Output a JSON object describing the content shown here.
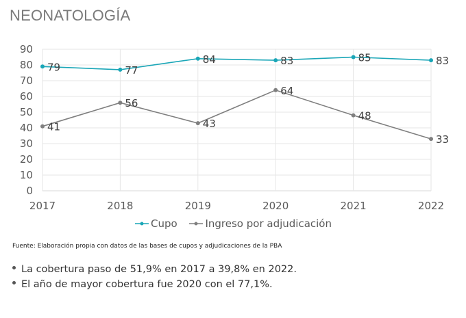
{
  "page": {
    "title": "NEONATOLOGÍA",
    "source": "Fuente: Elaboración propia con datos de las bases de cupos y adjudicaciones de la PBA",
    "bullets": [
      "La cobertura paso de 51,9% en 2017 a 39,8% en 2022.",
      "El año de mayor cobertura fue 2020 con el 77,1%."
    ]
  },
  "chart_data": {
    "type": "line",
    "title": "NEONATOLOGÍA",
    "xlabel": "",
    "ylabel": "",
    "categories": [
      "2017",
      "2018",
      "2019",
      "2020",
      "2021",
      "2022"
    ],
    "ylim": [
      0,
      90
    ],
    "yticks": [
      0,
      10,
      20,
      30,
      40,
      50,
      60,
      70,
      80,
      90
    ],
    "grid": true,
    "legend_position": "bottom",
    "series": [
      {
        "name": "Cupo",
        "color": "#1aa6b7",
        "values": [
          79,
          77,
          84,
          83,
          85,
          83
        ]
      },
      {
        "name": "Ingreso por adjudicación",
        "color": "#7f7f7f",
        "values": [
          41,
          56,
          43,
          64,
          48,
          33
        ]
      }
    ]
  }
}
